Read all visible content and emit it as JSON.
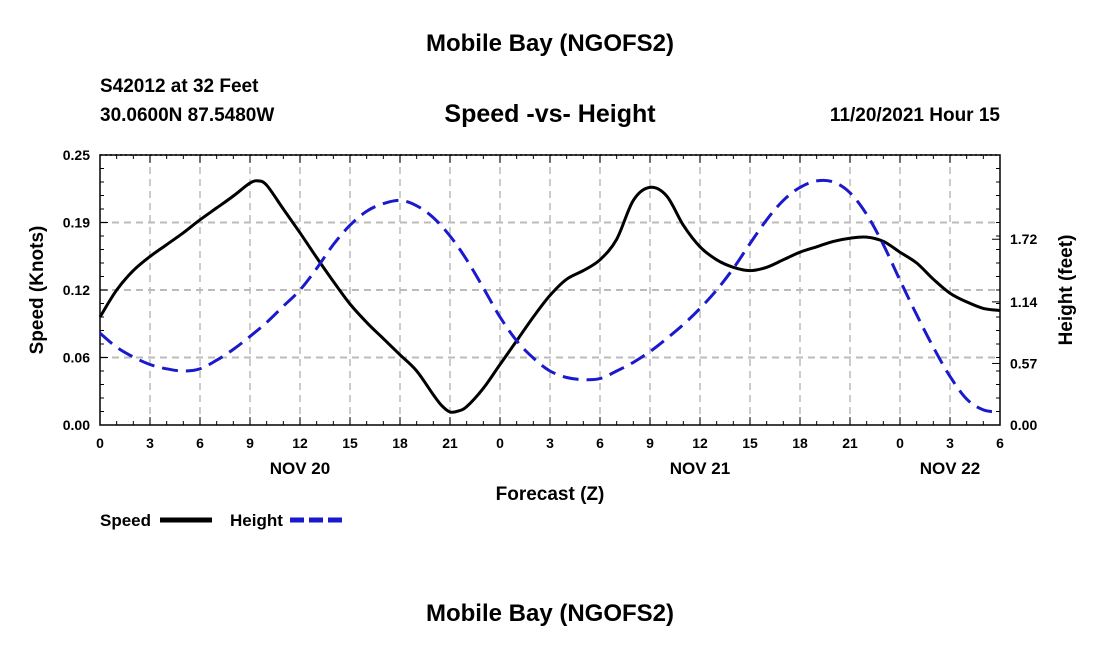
{
  "header": {
    "title": "Mobile Bay (NGOFS2)",
    "station": "S42012 at 32 Feet",
    "coords": "30.0600N  87.5480W",
    "subtitle": "Speed -vs- Height",
    "runtime": "11/20/2021 Hour 15"
  },
  "footer": {
    "title": "Mobile Bay (NGOFS2)"
  },
  "colors": {
    "speed": "#000000",
    "height": "#1a1acc",
    "grid": "#bbbbbb"
  },
  "chart_data": {
    "type": "line",
    "xlabel": "Forecast (Z)",
    "ylabel": "Speed (Knots)",
    "ylabel_right": "Height (feet)",
    "xlim": [
      0,
      54
    ],
    "ylim": [
      0,
      0.25
    ],
    "ylim_right": [
      0,
      2.5
    ],
    "x_ticks": [
      0,
      3,
      6,
      9,
      12,
      15,
      18,
      21,
      24,
      27,
      30,
      33,
      36,
      39,
      42,
      45,
      48,
      51,
      54
    ],
    "x_tick_labels": [
      "0",
      "3",
      "6",
      "9",
      "12",
      "15",
      "18",
      "21",
      "0",
      "3",
      "6",
      "9",
      "12",
      "15",
      "18",
      "21",
      "0",
      "3",
      "6"
    ],
    "y_ticks": [
      0,
      0.0625,
      0.125,
      0.1875,
      0.25
    ],
    "y_tick_labels": [
      "0.00",
      "0.06",
      "0.12",
      "0.19",
      "0.25"
    ],
    "y_ticks_right": [
      0,
      0.57,
      1.14,
      1.72
    ],
    "y_tick_labels_right": [
      "0.00",
      "0.57",
      "1.14",
      "1.72"
    ],
    "day_labels": [
      {
        "x": 12,
        "label": "NOV 20"
      },
      {
        "x": 36,
        "label": "NOV 21"
      },
      {
        "x": 51,
        "label": "NOV 22"
      }
    ],
    "grid": true,
    "legend_position": "bottom-left",
    "series": [
      {
        "name": "Speed",
        "axis": "left",
        "style": "solid",
        "x": [
          0,
          1,
          2,
          3,
          4,
          5,
          6,
          7,
          8,
          9,
          9.5,
          10,
          11,
          12,
          13,
          14,
          15,
          16,
          17,
          18,
          19,
          20,
          20.5,
          21,
          21.5,
          22,
          23,
          24,
          25,
          26,
          27,
          28,
          29,
          30,
          31,
          32,
          33,
          34,
          35,
          36,
          37,
          38,
          39,
          40,
          41,
          42,
          43,
          44,
          45,
          46,
          47,
          48,
          49,
          50,
          51,
          52,
          53,
          54
        ],
        "values": [
          0.1,
          0.125,
          0.143,
          0.156,
          0.167,
          0.178,
          0.19,
          0.201,
          0.212,
          0.224,
          0.226,
          0.222,
          0.2,
          0.178,
          0.155,
          0.133,
          0.112,
          0.095,
          0.08,
          0.065,
          0.05,
          0.028,
          0.018,
          0.012,
          0.013,
          0.017,
          0.034,
          0.056,
          0.078,
          0.1,
          0.12,
          0.135,
          0.143,
          0.153,
          0.172,
          0.208,
          0.22,
          0.212,
          0.185,
          0.165,
          0.153,
          0.146,
          0.143,
          0.146,
          0.153,
          0.16,
          0.165,
          0.17,
          0.173,
          0.174,
          0.17,
          0.16,
          0.15,
          0.135,
          0.122,
          0.114,
          0.108,
          0.106
        ]
      },
      {
        "name": "Height",
        "axis": "right",
        "style": "dashed",
        "x": [
          0,
          1,
          2,
          3,
          4,
          5,
          6,
          7,
          8,
          9,
          10,
          11,
          12,
          13,
          14,
          15,
          16,
          17,
          18,
          19,
          20,
          21,
          22,
          23,
          24,
          25,
          26,
          27,
          28,
          29,
          30,
          31,
          32,
          33,
          34,
          35,
          36,
          37,
          38,
          39,
          40,
          41,
          42,
          43,
          44,
          45,
          46,
          47,
          48,
          49,
          50,
          51,
          52,
          53,
          54
        ],
        "values": [
          0.85,
          0.72,
          0.63,
          0.56,
          0.52,
          0.5,
          0.52,
          0.6,
          0.7,
          0.82,
          0.95,
          1.1,
          1.25,
          1.45,
          1.67,
          1.85,
          1.98,
          2.05,
          2.08,
          2.03,
          1.92,
          1.75,
          1.53,
          1.27,
          1.0,
          0.78,
          0.62,
          0.5,
          0.44,
          0.42,
          0.43,
          0.5,
          0.58,
          0.68,
          0.8,
          0.93,
          1.08,
          1.25,
          1.45,
          1.68,
          1.9,
          2.08,
          2.2,
          2.26,
          2.25,
          2.15,
          1.95,
          1.67,
          1.34,
          1.02,
          0.72,
          0.45,
          0.24,
          0.14,
          0.12
        ]
      }
    ]
  }
}
